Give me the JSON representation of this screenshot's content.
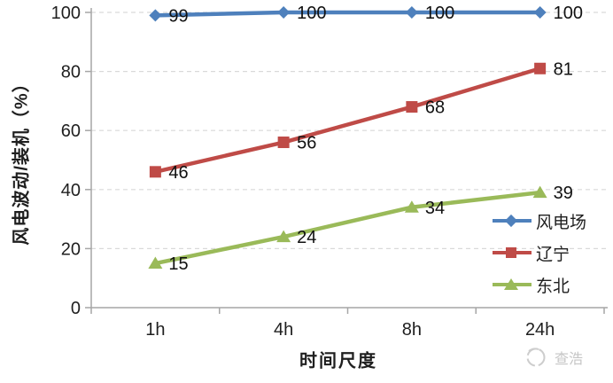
{
  "chart_data": {
    "type": "line",
    "title": "",
    "categories": [
      "1h",
      "4h",
      "8h",
      "24h"
    ],
    "series": [
      {
        "name": "风电场",
        "marker": "diamond",
        "color": "#4E80BC",
        "values": [
          99,
          100,
          100,
          100
        ]
      },
      {
        "name": "辽宁",
        "marker": "square",
        "color": "#BF4B47",
        "values": [
          46,
          56,
          68,
          81
        ]
      },
      {
        "name": "东北",
        "marker": "triangle",
        "color": "#9ABA59",
        "values": [
          15,
          24,
          34,
          39
        ]
      }
    ],
    "xlabel": "时间尺度",
    "ylabel": "风电波动/装机（%）",
    "ylim": [
      0,
      100
    ],
    "ytick_step": 20,
    "grid": "horizontal-dashed",
    "legend_position": "inside-right",
    "data_labels": true,
    "colors": {
      "grid": "#D9D9D9",
      "axis": "#A6A6A6",
      "text": "#1F1F1F",
      "watermark": "#C6C6C6"
    }
  },
  "watermark": {
    "text": "查浩"
  }
}
